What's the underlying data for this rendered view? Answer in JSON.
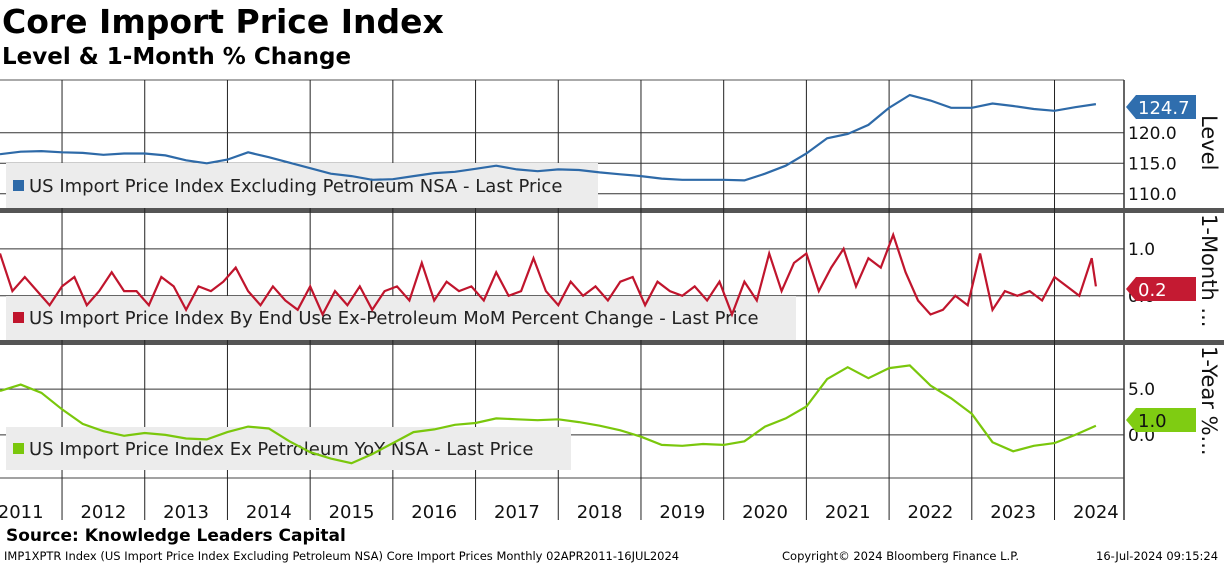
{
  "header": {
    "title": "Core Import Price Index",
    "subtitle": "Level & 1-Month % Change"
  },
  "source": "Source: Knowledge Leaders Capital",
  "footer": {
    "ticker": "IMP1XPTR Index (US Import Price Index Excluding Petroleum NSA) Core Import Prices  Monthly 02APR2011-16JUL2024",
    "copyright": "Copyright© 2024 Bloomberg Finance L.P.",
    "timestamp": "16-Jul-2024 09:15:24"
  },
  "colors": {
    "level": "#2e6aa8",
    "mom": "#c0152d",
    "yoy": "#7ac70c",
    "level_badge": "#2f6eae",
    "mom_badge": "#c41a32",
    "yoy_badge": "#7fcc12"
  },
  "chart_data": {
    "type": "line",
    "x_axis": {
      "start": "2011-04",
      "end": "2024-07",
      "tick_labels": [
        "2011",
        "2012",
        "2013",
        "2014",
        "2015",
        "2016",
        "2017",
        "2018",
        "2019",
        "2020",
        "2021",
        "2022",
        "2023",
        "2024"
      ]
    },
    "panels": [
      {
        "id": "level",
        "axis_title": "Level",
        "ylim": [
          108,
          128
        ],
        "ticks": [
          "110.0",
          "115.0",
          "120.0"
        ],
        "last_value_label": "124.7",
        "series": {
          "name": "US Import Price Index Excluding Petroleum NSA - Last Price",
          "x": [
            2011.25,
            2011.5,
            2011.75,
            2012.0,
            2012.25,
            2012.5,
            2012.75,
            2013.0,
            2013.25,
            2013.5,
            2013.75,
            2014.0,
            2014.25,
            2014.5,
            2014.75,
            2015.0,
            2015.25,
            2015.5,
            2015.75,
            2016.0,
            2016.25,
            2016.5,
            2016.75,
            2017.0,
            2017.25,
            2017.5,
            2017.75,
            2018.0,
            2018.25,
            2018.5,
            2018.75,
            2019.0,
            2019.25,
            2019.5,
            2019.75,
            2020.0,
            2020.25,
            2020.5,
            2020.75,
            2021.0,
            2021.25,
            2021.5,
            2021.75,
            2022.0,
            2022.25,
            2022.5,
            2022.75,
            2023.0,
            2023.25,
            2023.5,
            2023.75,
            2024.0,
            2024.25,
            2024.5
          ],
          "values": [
            116.5,
            116.9,
            117.0,
            116.8,
            116.7,
            116.4,
            116.6,
            116.6,
            116.3,
            115.5,
            115.0,
            115.6,
            116.8,
            116.0,
            115.1,
            114.2,
            113.3,
            112.9,
            112.3,
            112.4,
            112.9,
            113.4,
            113.6,
            114.1,
            114.6,
            114.0,
            113.7,
            114.0,
            113.9,
            113.5,
            113.2,
            112.9,
            112.5,
            112.3,
            112.3,
            112.3,
            112.2,
            113.3,
            114.6,
            116.6,
            119.1,
            119.8,
            121.3,
            124.1,
            126.2,
            125.3,
            124.1,
            124.1,
            124.8,
            124.4,
            123.9,
            123.6,
            124.2,
            124.7
          ]
        }
      },
      {
        "id": "mom",
        "axis_title": "1-Month ...",
        "ylim": [
          -0.9,
          1.7
        ],
        "ticks": [
          "1.0",
          "0.0"
        ],
        "last_value_label": "0.2",
        "series": {
          "name": "US Import Price Index By End Use Ex-Petroleum MoM Percent Change - Last Price",
          "x": [
            2011.25,
            2011.4,
            2011.55,
            2011.7,
            2011.85,
            2012.0,
            2012.15,
            2012.3,
            2012.45,
            2012.6,
            2012.75,
            2012.9,
            2013.05,
            2013.2,
            2013.35,
            2013.5,
            2013.65,
            2013.8,
            2013.95,
            2014.1,
            2014.25,
            2014.4,
            2014.55,
            2014.7,
            2014.85,
            2015.0,
            2015.15,
            2015.3,
            2015.45,
            2015.6,
            2015.75,
            2015.9,
            2016.05,
            2016.2,
            2016.35,
            2016.5,
            2016.65,
            2016.8,
            2016.95,
            2017.1,
            2017.25,
            2017.4,
            2017.55,
            2017.7,
            2017.85,
            2018.0,
            2018.15,
            2018.3,
            2018.45,
            2018.6,
            2018.75,
            2018.9,
            2019.05,
            2019.2,
            2019.35,
            2019.5,
            2019.65,
            2019.8,
            2019.95,
            2020.1,
            2020.25,
            2020.4,
            2020.55,
            2020.7,
            2020.85,
            2021.0,
            2021.15,
            2021.3,
            2021.45,
            2021.6,
            2021.75,
            2021.9,
            2022.05,
            2022.2,
            2022.35,
            2022.5,
            2022.65,
            2022.8,
            2022.95,
            2023.1,
            2023.25,
            2023.4,
            2023.55,
            2023.7,
            2023.85,
            2024.0,
            2024.15,
            2024.3,
            2024.45,
            2024.5
          ],
          "values": [
            0.9,
            0.1,
            0.4,
            0.1,
            -0.2,
            0.2,
            0.4,
            -0.2,
            0.1,
            0.5,
            0.1,
            0.1,
            -0.2,
            0.4,
            0.2,
            -0.3,
            0.2,
            0.1,
            0.3,
            0.6,
            0.1,
            -0.2,
            0.2,
            -0.1,
            -0.3,
            0.2,
            -0.4,
            0.1,
            -0.2,
            0.2,
            -0.3,
            0.1,
            0.2,
            -0.1,
            0.7,
            -0.1,
            0.3,
            0.1,
            0.2,
            -0.1,
            0.5,
            0.0,
            0.1,
            0.8,
            0.1,
            -0.2,
            0.3,
            0.0,
            0.2,
            -0.1,
            0.3,
            0.4,
            -0.2,
            0.3,
            0.1,
            0.0,
            0.2,
            -0.1,
            0.3,
            -0.4,
            0.3,
            -0.1,
            0.9,
            0.1,
            0.7,
            0.9,
            0.1,
            0.6,
            1.0,
            0.2,
            0.8,
            0.6,
            1.3,
            0.5,
            -0.1,
            -0.4,
            -0.3,
            0.0,
            -0.2,
            0.9,
            -0.3,
            0.1,
            0.0,
            0.1,
            -0.1,
            0.4,
            0.2,
            0.0,
            0.8,
            0.2
          ]
        }
      },
      {
        "id": "yoy",
        "axis_title": "1-Year %...",
        "ylim": [
          -4.5,
          9.5
        ],
        "ticks": [
          "5.0",
          "0.0"
        ],
        "last_value_label": "1.0",
        "series": {
          "name": "US Import Price Index Ex Petroleum YoY NSA - Last Price",
          "x": [
            2011.25,
            2011.5,
            2011.75,
            2012.0,
            2012.25,
            2012.5,
            2012.75,
            2013.0,
            2013.25,
            2013.5,
            2013.75,
            2014.0,
            2014.25,
            2014.5,
            2014.75,
            2015.0,
            2015.25,
            2015.5,
            2015.75,
            2016.0,
            2016.25,
            2016.5,
            2016.75,
            2017.0,
            2017.25,
            2017.5,
            2017.75,
            2018.0,
            2018.25,
            2018.5,
            2018.75,
            2019.0,
            2019.25,
            2019.5,
            2019.75,
            2020.0,
            2020.25,
            2020.5,
            2020.75,
            2021.0,
            2021.25,
            2021.5,
            2021.75,
            2022.0,
            2022.25,
            2022.5,
            2022.75,
            2023.0,
            2023.25,
            2023.5,
            2023.75,
            2024.0,
            2024.25,
            2024.5
          ],
          "values": [
            4.8,
            5.5,
            4.6,
            2.8,
            1.2,
            0.4,
            -0.1,
            0.2,
            0.0,
            -0.4,
            -0.5,
            0.3,
            0.9,
            0.7,
            -0.7,
            -1.9,
            -2.6,
            -3.1,
            -2.1,
            -0.9,
            0.3,
            0.6,
            1.1,
            1.3,
            1.8,
            1.7,
            1.6,
            1.7,
            1.4,
            1.0,
            0.5,
            -0.2,
            -1.1,
            -1.2,
            -1.0,
            -1.1,
            -0.7,
            0.9,
            1.8,
            3.1,
            6.1,
            7.4,
            6.2,
            7.3,
            7.6,
            5.4,
            4.0,
            2.3,
            -0.8,
            -1.8,
            -1.2,
            -0.9,
            0.0,
            1.0
          ]
        }
      }
    ]
  }
}
